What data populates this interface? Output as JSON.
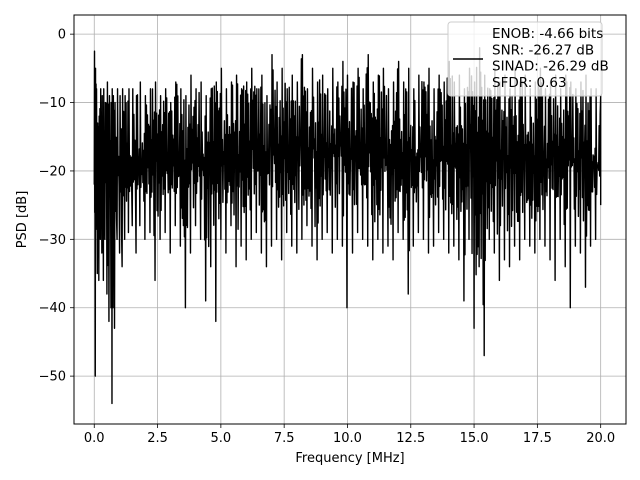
{
  "chart_data": {
    "type": "line",
    "xlabel": "Frequency [MHz]",
    "ylabel": "PSD [dB]",
    "xlim": [
      -0.8,
      21.0
    ],
    "ylim": [
      -57.0,
      2.8
    ],
    "xticks": [
      0.0,
      2.5,
      5.0,
      7.5,
      10.0,
      12.5,
      15.0,
      17.5,
      20.0
    ],
    "xtick_labels": [
      "0.0",
      "2.5",
      "5.0",
      "7.5",
      "10.0",
      "12.5",
      "15.0",
      "17.5",
      "20.0"
    ],
    "yticks": [
      0,
      -10,
      -20,
      -30,
      -40,
      -50
    ],
    "ytick_labels": [
      "0",
      "−10",
      "−20",
      "−30",
      "−40",
      "−50"
    ],
    "grid": true,
    "legend_position": "top-right",
    "legend_lines": [
      "ENOB: -4.66 bits",
      "SNR: -26.27 dB",
      "SINAD: -26.29 dB",
      "SFDR: 0.63"
    ],
    "series": [
      {
        "color": "#000000",
        "x": [
          0.0,
          0.04,
          0.08,
          0.12,
          0.18,
          0.24,
          0.3,
          0.36,
          0.42,
          0.5,
          0.58,
          0.66,
          0.7,
          0.74,
          0.8,
          0.9,
          1.0,
          1.1,
          1.2,
          1.35,
          1.5,
          1.65,
          1.8,
          2.0,
          2.2,
          2.4,
          2.6,
          2.8,
          3.0,
          3.2,
          3.4,
          3.6,
          3.8,
          4.0,
          4.2,
          4.4,
          4.6,
          4.8,
          5.0,
          5.2,
          5.4,
          5.6,
          5.8,
          6.0,
          6.2,
          6.4,
          6.6,
          6.8,
          7.0,
          7.2,
          7.4,
          7.6,
          7.8,
          8.0,
          8.2,
          8.4,
          8.6,
          8.8,
          9.0,
          9.2,
          9.4,
          9.6,
          9.8,
          9.98,
          10.2,
          10.4,
          10.6,
          10.8,
          11.0,
          11.2,
          11.4,
          11.6,
          11.8,
          12.0,
          12.2,
          12.4,
          12.6,
          12.8,
          13.0,
          13.2,
          13.4,
          13.6,
          13.8,
          14.0,
          14.2,
          14.4,
          14.6,
          14.8,
          15.0,
          15.2,
          15.4,
          15.6,
          15.8,
          16.0,
          16.2,
          16.4,
          16.6,
          16.8,
          17.0,
          17.2,
          17.4,
          17.6,
          17.8,
          18.0,
          18.2,
          18.4,
          18.6,
          18.8,
          19.0,
          19.2,
          19.4,
          19.6,
          19.8,
          20.0
        ],
        "max": [
          -2.5,
          -5,
          -8,
          -13,
          -12,
          -8,
          -9,
          -8,
          -10,
          -7,
          -9,
          -10,
          -8,
          -9,
          -10,
          -8,
          -9,
          -8,
          -9,
          -8,
          -8,
          -9,
          -7,
          -9,
          -8,
          -7,
          -9,
          -8,
          -10,
          -7,
          -8,
          -9,
          -6,
          -8,
          -7,
          -9,
          -8,
          -7,
          -5,
          -8,
          -7,
          -6,
          -8,
          -7,
          -5,
          -8,
          -6,
          -9,
          -3,
          -7,
          -5,
          -8,
          -6,
          -7,
          -3,
          -8,
          -5,
          -7,
          -6,
          -8,
          -5,
          -7,
          -4,
          -6,
          -7,
          -5,
          -8,
          -3,
          -7,
          -6,
          -5,
          -8,
          -7,
          -4,
          -7,
          -5,
          -8,
          -6,
          -7,
          -5,
          -8,
          -6,
          -7,
          -4,
          -7,
          -6,
          -8,
          -5,
          -7,
          -2,
          -6,
          -8,
          -5,
          -7,
          -6,
          -8,
          -5,
          -7,
          -6,
          -8,
          -7,
          -5,
          -8,
          -7,
          -6,
          -8,
          -6,
          -7,
          -8,
          -7,
          -6,
          -8,
          -8,
          -9
        ],
        "min": [
          -22,
          -50,
          -28,
          -35,
          -36,
          -30,
          -32,
          -36,
          -30,
          -38,
          -42,
          -40,
          -54,
          -40,
          -43,
          -30,
          -32,
          -34,
          -30,
          -29,
          -28,
          -32,
          -28,
          -30,
          -29,
          -36,
          -30,
          -29,
          -32,
          -28,
          -31,
          -40,
          -32,
          -28,
          -30,
          -39,
          -34,
          -42,
          -30,
          -32,
          -28,
          -34,
          -31,
          -33,
          -30,
          -29,
          -32,
          -34,
          -31,
          -30,
          -33,
          -29,
          -31,
          -32,
          -30,
          -28,
          -31,
          -33,
          -30,
          -29,
          -32,
          -30,
          -31,
          -40,
          -32,
          -29,
          -30,
          -31,
          -33,
          -30,
          -32,
          -31,
          -33,
          -29,
          -30,
          -38,
          -31,
          -29,
          -30,
          -32,
          -31,
          -29,
          -30,
          -32,
          -31,
          -33,
          -39,
          -30,
          -43,
          -34,
          -47,
          -30,
          -32,
          -36,
          -33,
          -34,
          -31,
          -33,
          -30,
          -31,
          -32,
          -30,
          -31,
          -33,
          -36,
          -30,
          -34,
          -40,
          -31,
          -32,
          -37,
          -31,
          -30,
          -25
        ]
      }
    ]
  }
}
